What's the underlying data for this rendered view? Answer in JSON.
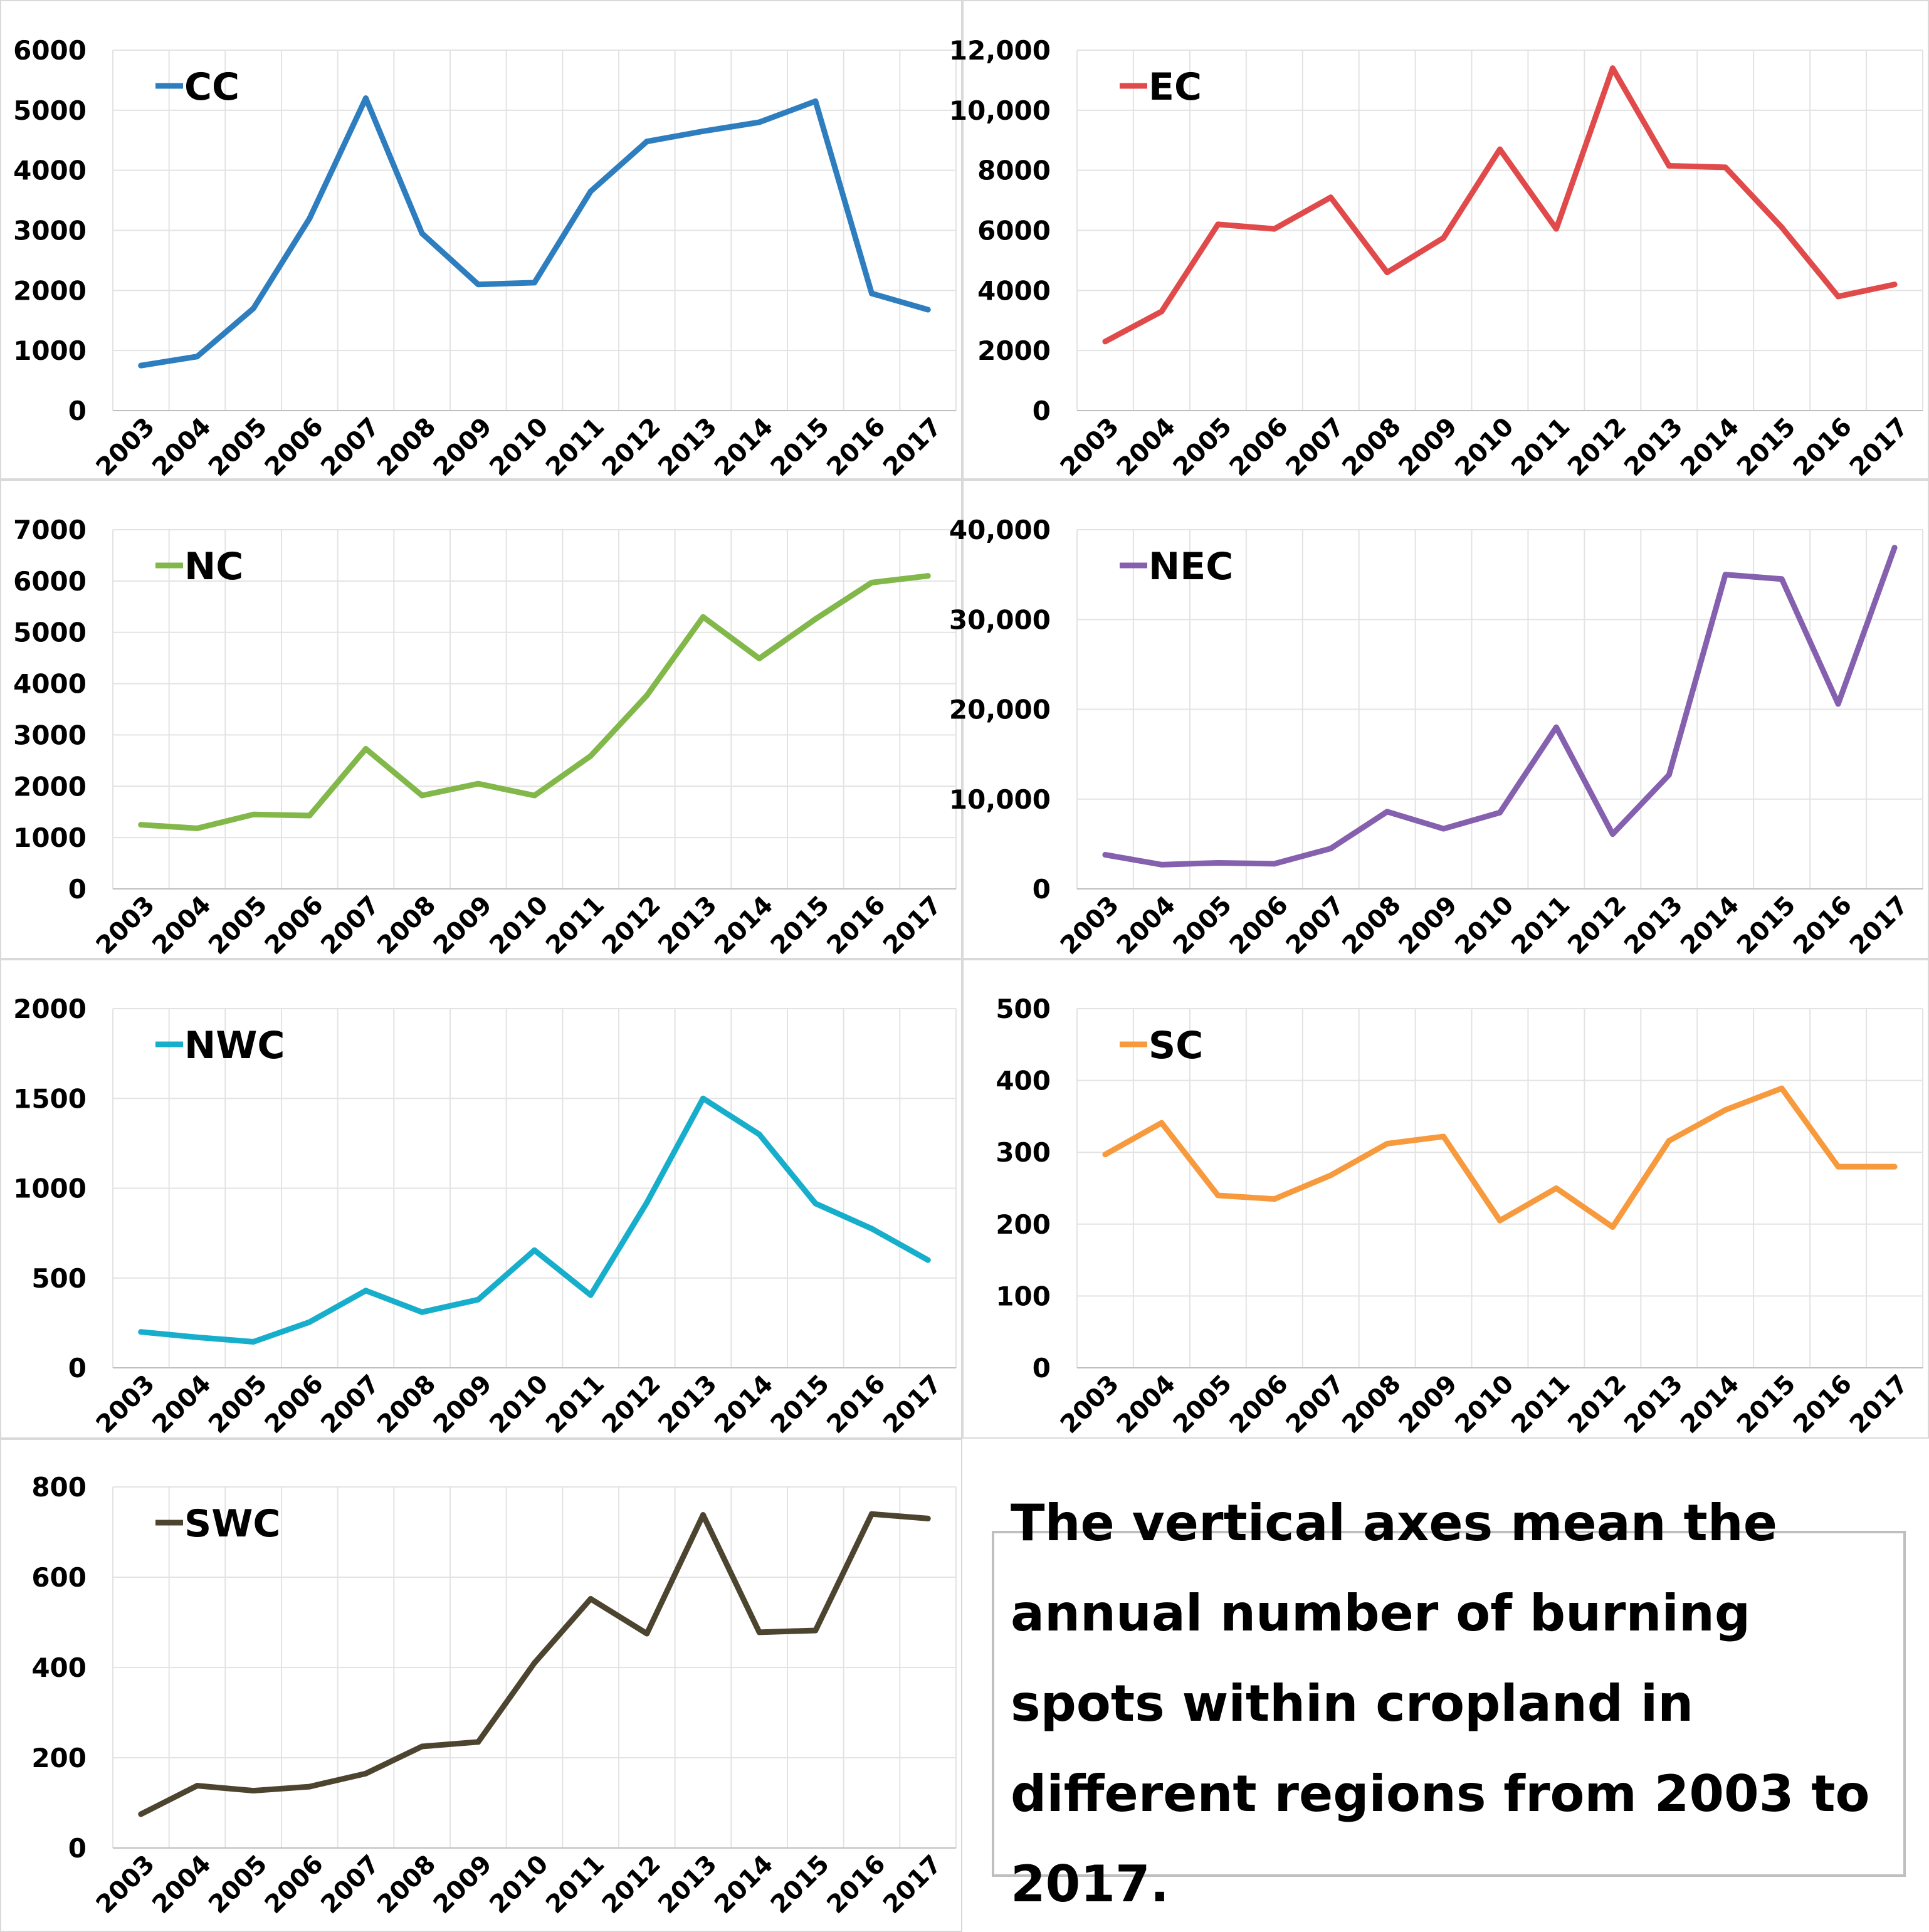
{
  "categories": [
    "2003",
    "2004",
    "2005",
    "2006",
    "2007",
    "2008",
    "2009",
    "2010",
    "2011",
    "2012",
    "2013",
    "2014",
    "2015",
    "2016",
    "2017"
  ],
  "note": "The vertical axes mean the annual number of burning spots within cropland in different regions from 2003 to 2017.",
  "chart_data": [
    {
      "type": "line",
      "series": [
        {
          "name": "CC",
          "color": "#2E7EBF",
          "values": [
            750,
            900,
            1700,
            3200,
            5200,
            2950,
            2100,
            2130,
            3650,
            4480,
            4650,
            4800,
            5150,
            1950,
            1680
          ]
        }
      ],
      "ylim": [
        0,
        6000
      ],
      "yticks": [
        "0",
        "1000",
        "2000",
        "3000",
        "4000",
        "5000",
        "6000"
      ]
    },
    {
      "type": "line",
      "series": [
        {
          "name": "EC",
          "color": "#E04A4A",
          "values": [
            2300,
            3300,
            6200,
            6050,
            7100,
            4600,
            5750,
            8700,
            6050,
            11400,
            8150,
            8100,
            6100,
            3800,
            4200
          ]
        }
      ],
      "ylim": [
        0,
        12000
      ],
      "yticks": [
        "0",
        "2000",
        "4000",
        "6000",
        "8000",
        "10,000",
        "12,000"
      ]
    },
    {
      "type": "line",
      "series": [
        {
          "name": "NC",
          "color": "#82B74A",
          "values": [
            1250,
            1180,
            1450,
            1430,
            2730,
            1820,
            2050,
            1820,
            2590,
            3770,
            5300,
            4490,
            5260,
            5970,
            6100
          ]
        }
      ],
      "ylim": [
        0,
        7000
      ],
      "yticks": [
        "0",
        "1000",
        "2000",
        "3000",
        "4000",
        "5000",
        "6000",
        "7000"
      ]
    },
    {
      "type": "line",
      "series": [
        {
          "name": "NEC",
          "color": "#8460AE",
          "values": [
            3800,
            2700,
            2900,
            2800,
            4500,
            8600,
            6700,
            8500,
            18000,
            6100,
            12700,
            35000,
            34500,
            20600,
            38000
          ]
        }
      ],
      "ylim": [
        0,
        40000
      ],
      "yticks": [
        "0",
        "10,000",
        "20,000",
        "30,000",
        "40,000"
      ]
    },
    {
      "type": "line",
      "series": [
        {
          "name": "NWC",
          "color": "#17AECB",
          "values": [
            200,
            170,
            145,
            255,
            430,
            310,
            380,
            655,
            405,
            920,
            1500,
            1300,
            915,
            775,
            600
          ]
        }
      ],
      "ylim": [
        0,
        2000
      ],
      "yticks": [
        "0",
        "500",
        "1000",
        "1500",
        "2000"
      ]
    },
    {
      "type": "line",
      "series": [
        {
          "name": "SC",
          "color": "#F79A3E",
          "values": [
            297,
            341,
            240,
            235,
            268,
            312,
            322,
            205,
            250,
            196,
            316,
            359,
            389,
            280,
            280
          ]
        }
      ],
      "ylim": [
        0,
        500
      ],
      "yticks": [
        "0",
        "100",
        "200",
        "300",
        "400",
        "500"
      ]
    },
    {
      "type": "line",
      "series": [
        {
          "name": "SWC",
          "color": "#4D4430",
          "values": [
            75,
            138,
            127,
            136,
            165,
            225,
            235,
            410,
            552,
            475,
            738,
            478,
            482,
            740,
            730
          ]
        }
      ],
      "ylim": [
        0,
        800
      ],
      "yticks": [
        "0",
        "200",
        "400",
        "600",
        "800"
      ]
    }
  ]
}
